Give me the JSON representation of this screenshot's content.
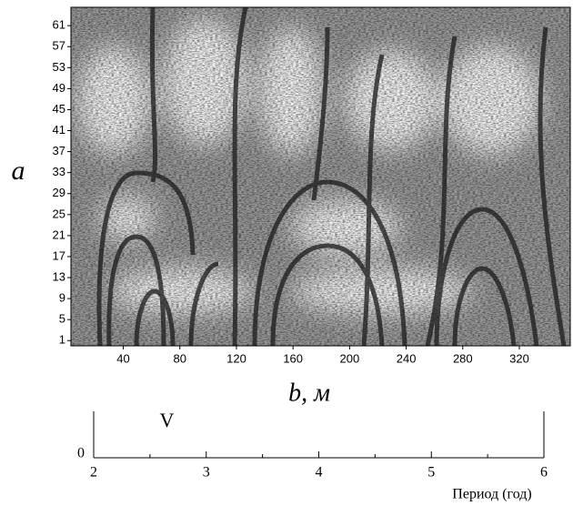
{
  "chart_data": [
    {
      "type": "heatmap",
      "xlabel": "b, м",
      "ylabel": "a",
      "xlim": [
        3,
        356
      ],
      "ylim": [
        0,
        64.5
      ],
      "xticks": [
        40,
        80,
        120,
        160,
        200,
        240,
        280,
        320
      ],
      "yticks": [
        1,
        5,
        9,
        13,
        17,
        21,
        25,
        29,
        33,
        37,
        41,
        45,
        49,
        53,
        57,
        61
      ],
      "colormap": "gray"
    },
    {
      "type": "axis",
      "xlabel": "Период (год)",
      "xlim": [
        2,
        6
      ],
      "xticks": [
        2,
        3,
        4,
        5,
        6
      ],
      "minor_xticks": [
        2.5,
        3.5,
        4.5,
        5.5
      ],
      "ylim": [
        0,
        1
      ],
      "yticks": [
        0
      ],
      "annotations": [
        {
          "text": "V",
          "x": 2.65
        }
      ]
    }
  ]
}
